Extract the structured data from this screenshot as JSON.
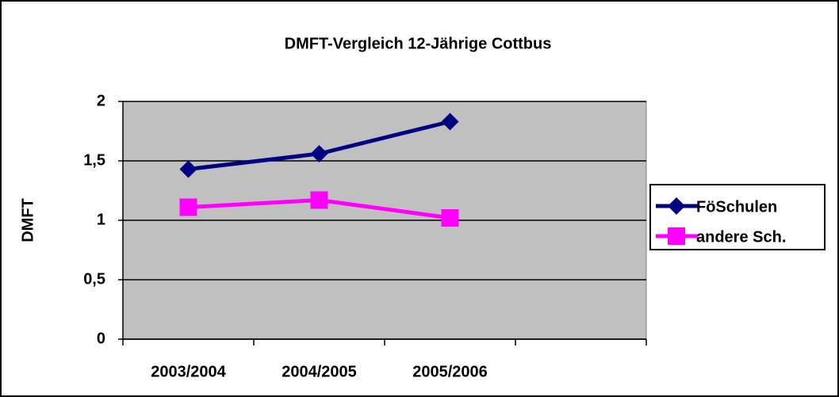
{
  "chart_data": {
    "type": "line",
    "title": "DMFT-Vergleich 12-Jährige Cottbus",
    "y_label": "DMFT",
    "categories": [
      "2003/2004",
      "2004/2005",
      "2005/2006",
      null
    ],
    "series": [
      {
        "name": "FöSchulen",
        "color": "#000080",
        "marker": "diamond",
        "values": [
          1.43,
          1.56,
          1.83,
          null
        ]
      },
      {
        "name": "andere Sch.",
        "color": "#ff00ff",
        "marker": "square",
        "values": [
          1.11,
          1.17,
          1.02,
          null
        ]
      }
    ],
    "ylim": [
      0,
      2
    ],
    "yticks": [
      0,
      {
        "value": 0.5,
        "label": "0,5"
      },
      1,
      {
        "value": 1.5,
        "label": "1,5"
      },
      2
    ],
    "grid": true,
    "legend": "right"
  }
}
